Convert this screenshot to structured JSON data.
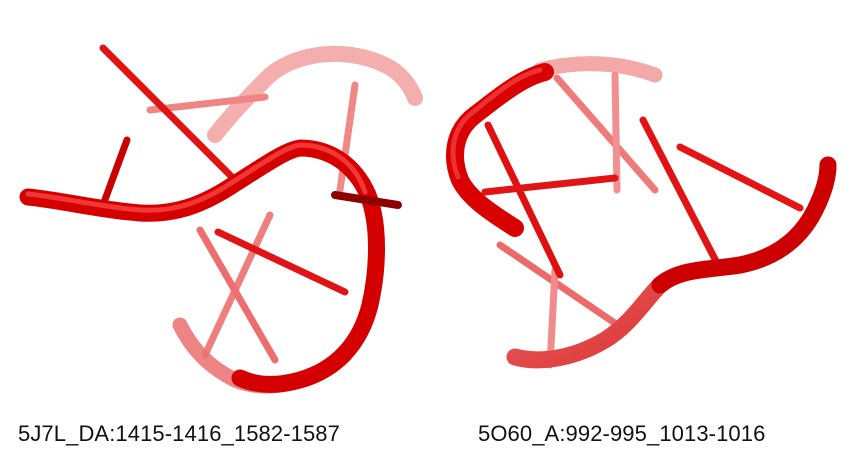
{
  "panels": [
    {
      "label": "5J7L_DA:1415-1416_1582-1587"
    },
    {
      "label": "5O60_A:992-995_1013-1016"
    }
  ],
  "colors": {
    "backbone": "#e31b1b",
    "backbone_dark": "#b40000",
    "background": "#ffffff"
  }
}
